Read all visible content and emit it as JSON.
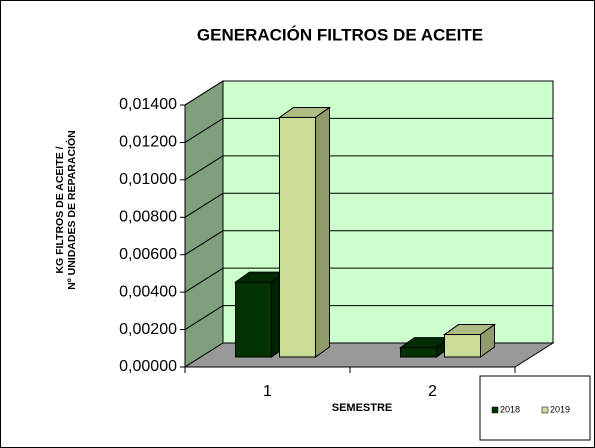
{
  "chart_data": {
    "type": "bar3d",
    "title": "GENERACIÓN FILTROS DE ACEITE",
    "y_label": [
      "KG FILTROS DE ACEITE /",
      "Nº UNIDADES DE REPARACIÓN"
    ],
    "x_label": "SEMESTRE",
    "categories": [
      "1",
      "2"
    ],
    "series": [
      {
        "name": "2018",
        "color": "#003300",
        "values": [
          0.004,
          0.0005
        ]
      },
      {
        "name": "2019",
        "color": "#ccdd99",
        "values": [
          0.0128,
          0.0012
        ]
      }
    ],
    "ylim": [
      0,
      0.014
    ],
    "yticks": [
      {
        "value": 0,
        "label": "0,00000"
      },
      {
        "value": 0.002,
        "label": "0,00200"
      },
      {
        "value": 0.004,
        "label": "0,00400"
      },
      {
        "value": 0.006,
        "label": "0,00600"
      },
      {
        "value": 0.008,
        "label": "0,00800"
      },
      {
        "value": 0.01,
        "label": "0,01000"
      },
      {
        "value": 0.012,
        "label": "0,01200"
      },
      {
        "value": 0.014,
        "label": "0,01400"
      }
    ],
    "grid": true
  }
}
